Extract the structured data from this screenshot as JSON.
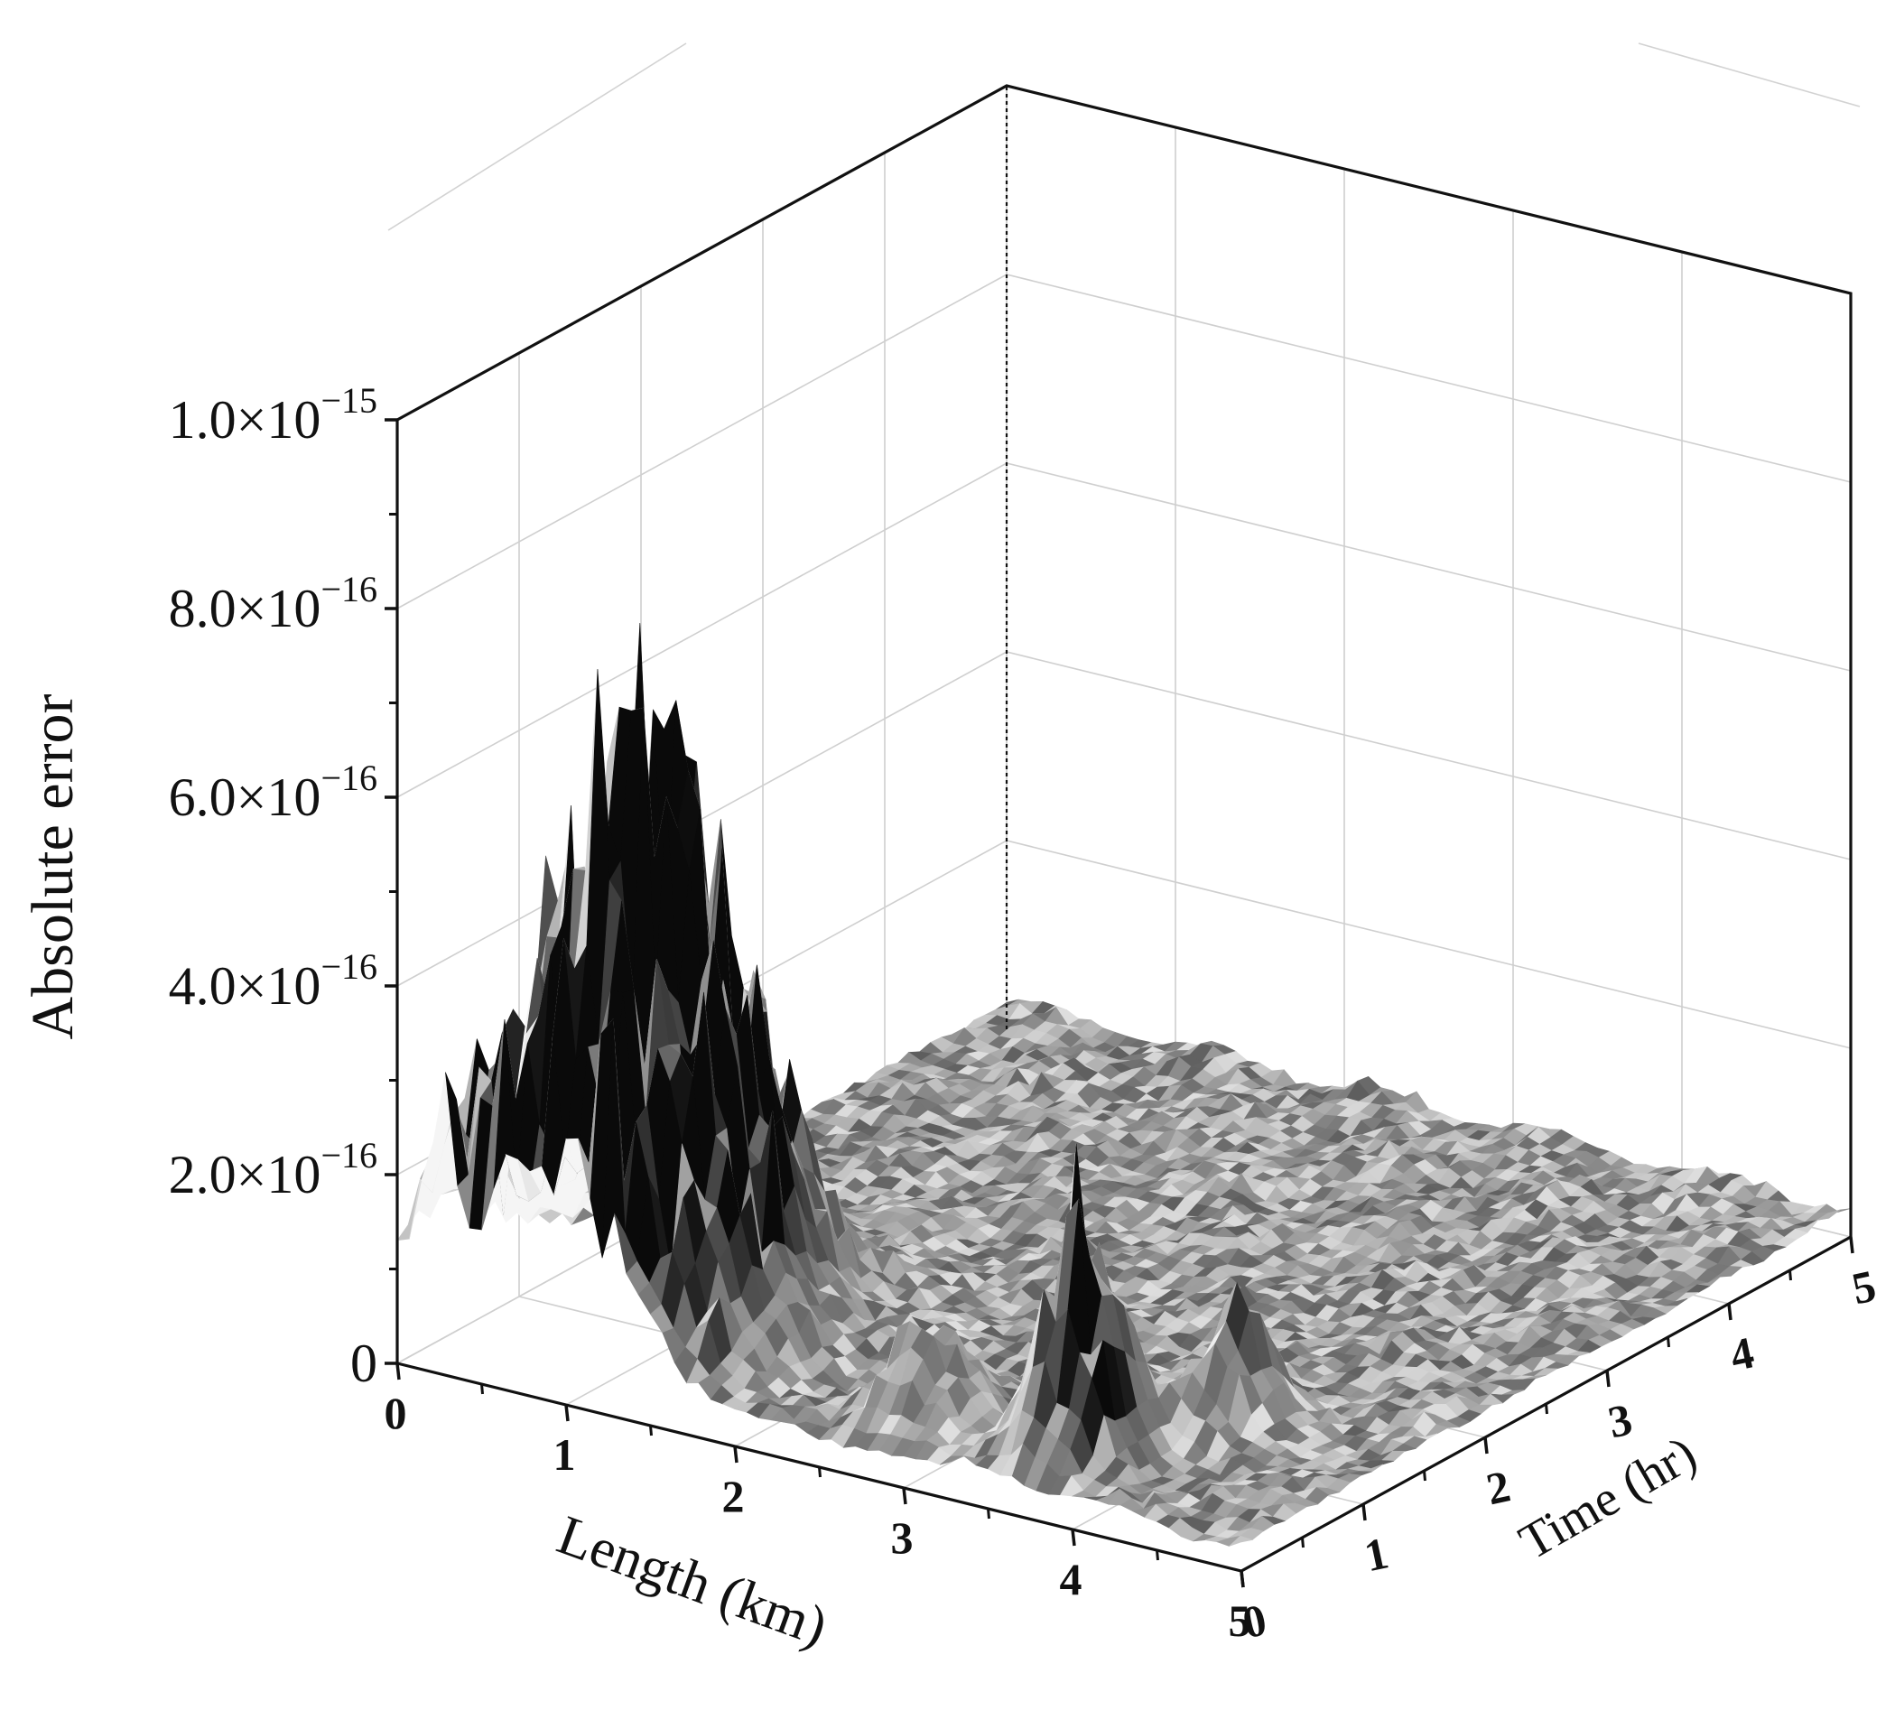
{
  "chart_data": {
    "type": "surface3d",
    "title": "",
    "xlabel": "Length (km)",
    "ylabel": "Time (hr)",
    "zlabel": "Absolute error",
    "xlim": [
      0,
      5
    ],
    "ylim": [
      0,
      5
    ],
    "zlim": [
      0,
      1e-15
    ],
    "x_ticks": [
      "0",
      "1",
      "2",
      "3",
      "4",
      "5"
    ],
    "y_ticks": [
      "0",
      "1",
      "2",
      "3",
      "4",
      "5"
    ],
    "z_ticks": [
      {
        "value": 0,
        "mantissa": "0",
        "exponent": ""
      },
      {
        "value": 2e-16,
        "mantissa": "2.0×10",
        "exponent": "−16"
      },
      {
        "value": 4e-16,
        "mantissa": "4.0×10",
        "exponent": "−16"
      },
      {
        "value": 6e-16,
        "mantissa": "6.0×10",
        "exponent": "−16"
      },
      {
        "value": 8e-16,
        "mantissa": "8.0×10",
        "exponent": "−16"
      },
      {
        "value": 1e-15,
        "mantissa": "1.0×10",
        "exponent": "−15"
      }
    ],
    "grid": true,
    "colormap": "grayscale",
    "surface_features": [
      {
        "x": 1.0,
        "y": 0.6,
        "z": 6e-16,
        "note": "broad main peak"
      },
      {
        "x": 0.9,
        "y": 1.0,
        "z": 8.5e-16,
        "note": "max spikes"
      },
      {
        "x": 3.6,
        "y": 0.5,
        "z": 2.8e-16,
        "note": "secondary spike cluster"
      },
      {
        "x": 4.0,
        "y": 1.2,
        "z": 2e-16,
        "note": "minor spikes"
      },
      {
        "x": 2.5,
        "y": 3.0,
        "z": 3e-17,
        "note": "flat low region"
      }
    ]
  }
}
